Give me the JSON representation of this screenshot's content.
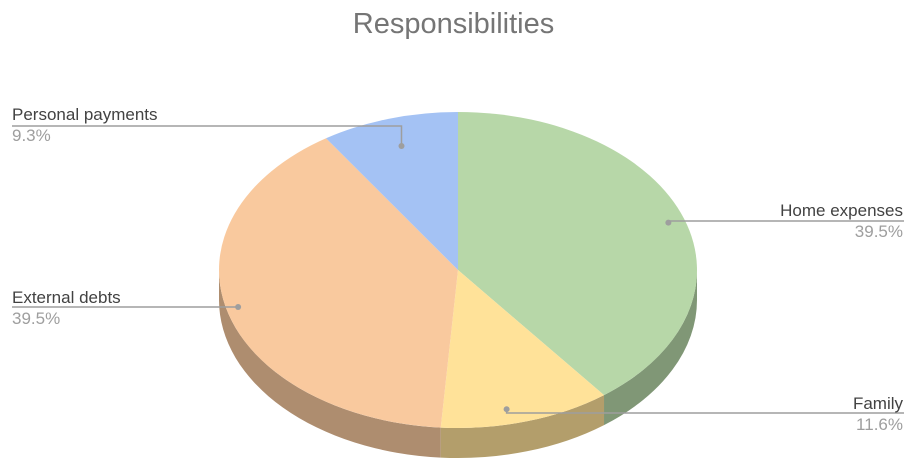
{
  "chart_data": {
    "type": "pie",
    "title": "Responsibilities",
    "slices": [
      {
        "label": "Home expenses",
        "value": 39.5,
        "value_label": "39.5%",
        "color": "#b7d7a8"
      },
      {
        "label": "Family",
        "value": 11.6,
        "value_label": "11.6%",
        "color": "#ffe299"
      },
      {
        "label": "External debts",
        "value": 39.5,
        "value_label": "39.5%",
        "color": "#f9c99e"
      },
      {
        "label": "Personal payments",
        "value": 9.3,
        "value_label": "9.3%",
        "color": "#a4c2f4"
      }
    ],
    "style": "3d",
    "start_direction": "top",
    "direction": "clockwise"
  }
}
